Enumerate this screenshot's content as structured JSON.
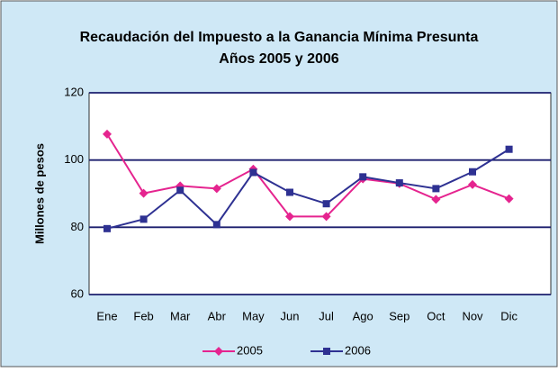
{
  "chart_data": {
    "type": "line",
    "title": "Recaudación del Impuesto a la Ganancia Mínima Presunta",
    "subtitle": "Años 2005 y 2006",
    "y_label": "Millones de pesos",
    "categories": [
      "Ene",
      "Feb",
      "Mar",
      "Abr",
      "May",
      "Jun",
      "Jul",
      "Ago",
      "Sep",
      "Oct",
      "Nov",
      "Dic"
    ],
    "series": [
      {
        "name": "2005",
        "color": "#e5248f",
        "marker": "diamond",
        "values": [
          107.7,
          90.1,
          92.3,
          91.5,
          97.3,
          83.2,
          83.2,
          94.4,
          93,
          88.3,
          92.7,
          88.5
        ]
      },
      {
        "name": "2006",
        "color": "#2e3192",
        "marker": "square",
        "values": [
          79.6,
          82.4,
          91,
          80.8,
          96.3,
          90.4,
          87,
          95,
          93.2,
          91.5,
          96.5,
          103.2
        ]
      }
    ],
    "ylim": [
      60,
      120
    ],
    "yticks": [
      60,
      80,
      100,
      120
    ],
    "grid": true,
    "legend": "bottom"
  }
}
